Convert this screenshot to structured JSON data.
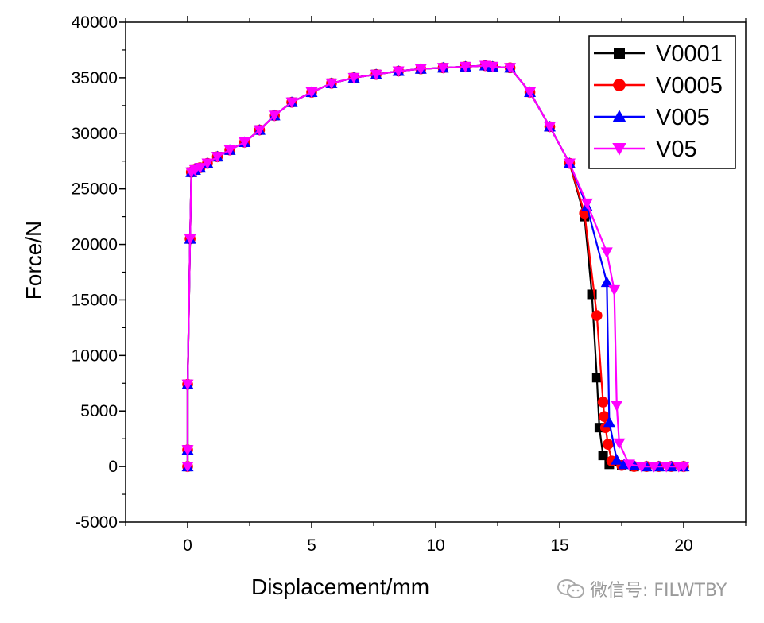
{
  "chart_data": {
    "type": "line",
    "xlabel": "Displacement/mm",
    "ylabel": "Force/N",
    "xlim": [
      -2.5,
      22.5
    ],
    "ylim": [
      -5000,
      40000
    ],
    "xticks": [
      0,
      5,
      10,
      15,
      20
    ],
    "yticks": [
      -5000,
      0,
      5000,
      10000,
      15000,
      20000,
      25000,
      30000,
      35000,
      40000
    ],
    "xtick_labels": [
      "0",
      "5",
      "10",
      "15",
      "20"
    ],
    "ytick_labels": [
      "-5000",
      "0",
      "5000",
      "10000",
      "15000",
      "20000",
      "25000",
      "30000",
      "35000",
      "40000"
    ],
    "grid": false,
    "legend_position": "top-right",
    "series": [
      {
        "name": "V0001",
        "color": "#000000",
        "marker": "square",
        "x": [
          0,
          0,
          0,
          0.1,
          0.15,
          0.3,
          0.5,
          0.8,
          1.2,
          1.7,
          2.3,
          2.9,
          3.5,
          4.2,
          5.0,
          5.8,
          6.7,
          7.6,
          8.5,
          9.4,
          10.3,
          11.2,
          12.0,
          12.3,
          13.0,
          13.8,
          14.6,
          15.4,
          16.0,
          16.3,
          16.5,
          16.6,
          16.75,
          17.0,
          17.5,
          18.0,
          18.5,
          19.0,
          19.5,
          20.0
        ],
        "y": [
          0,
          1500,
          7400,
          20500,
          26500,
          26700,
          26900,
          27300,
          27900,
          28500,
          29200,
          30300,
          31600,
          32800,
          33700,
          34500,
          35000,
          35300,
          35600,
          35800,
          35900,
          36000,
          36100,
          36000,
          35900,
          33700,
          30600,
          27300,
          22500,
          15500,
          8000,
          3500,
          1000,
          200,
          100,
          0,
          0,
          0,
          0,
          0
        ]
      },
      {
        "name": "V0005",
        "color": "#ff0000",
        "marker": "circle",
        "x": [
          0,
          0,
          0,
          0.1,
          0.15,
          0.3,
          0.5,
          0.8,
          1.2,
          1.7,
          2.3,
          2.9,
          3.5,
          4.2,
          5.0,
          5.8,
          6.7,
          7.6,
          8.5,
          9.4,
          10.3,
          11.2,
          12.0,
          12.3,
          13.0,
          13.8,
          14.6,
          15.4,
          16.0,
          16.5,
          16.75,
          16.8,
          16.85,
          16.95,
          17.1,
          17.5,
          18.0,
          18.5,
          19.0,
          19.5,
          20.0
        ],
        "y": [
          0,
          1500,
          7400,
          20500,
          26500,
          26700,
          26900,
          27300,
          27900,
          28500,
          29200,
          30300,
          31600,
          32800,
          33700,
          34500,
          35000,
          35300,
          35600,
          35800,
          35900,
          36000,
          36100,
          36000,
          35900,
          33700,
          30600,
          27300,
          22800,
          13600,
          5800,
          4500,
          3500,
          2000,
          500,
          100,
          0,
          0,
          0,
          0,
          0
        ]
      },
      {
        "name": "V005",
        "color": "#0000ff",
        "marker": "triangle-up",
        "x": [
          0,
          0,
          0,
          0.1,
          0.15,
          0.3,
          0.5,
          0.8,
          1.2,
          1.7,
          2.3,
          2.9,
          3.5,
          4.2,
          5.0,
          5.8,
          6.7,
          7.6,
          8.5,
          9.4,
          10.3,
          11.2,
          12.0,
          12.3,
          13.0,
          13.8,
          14.6,
          15.4,
          16.1,
          16.9,
          17.0,
          17.3,
          17.6,
          18.0,
          18.5,
          19.0,
          19.5,
          20.0
        ],
        "y": [
          0,
          1500,
          7400,
          20500,
          26500,
          26700,
          26900,
          27300,
          27900,
          28500,
          29200,
          30300,
          31600,
          32800,
          33700,
          34500,
          35000,
          35300,
          35600,
          35800,
          35900,
          36000,
          36100,
          36000,
          35900,
          33700,
          30600,
          27300,
          23400,
          16600,
          4000,
          600,
          200,
          100,
          0,
          0,
          0,
          0
        ]
      },
      {
        "name": "V05",
        "color": "#ff00ff",
        "marker": "triangle-down",
        "x": [
          0,
          0,
          0,
          0.1,
          0.15,
          0.3,
          0.5,
          0.8,
          1.2,
          1.7,
          2.3,
          2.9,
          3.5,
          4.2,
          5.0,
          5.8,
          6.7,
          7.6,
          8.5,
          9.4,
          10.3,
          11.2,
          12.0,
          12.3,
          13.0,
          13.8,
          14.6,
          15.4,
          16.1,
          16.9,
          17.2,
          17.3,
          17.4,
          17.8,
          18.3,
          18.8,
          19.3,
          19.8,
          20.0
        ],
        "y": [
          0,
          1500,
          7400,
          20500,
          26500,
          26700,
          26900,
          27300,
          27900,
          28500,
          29200,
          30300,
          31600,
          32800,
          33700,
          34500,
          35000,
          35300,
          35600,
          35800,
          35900,
          36000,
          36100,
          36000,
          35900,
          33700,
          30600,
          27300,
          23700,
          19300,
          15900,
          5500,
          2100,
          200,
          0,
          0,
          0,
          0,
          0
        ]
      }
    ]
  },
  "watermark": {
    "icon": "wechat-icon",
    "text": "微信号: FILWTBY"
  }
}
